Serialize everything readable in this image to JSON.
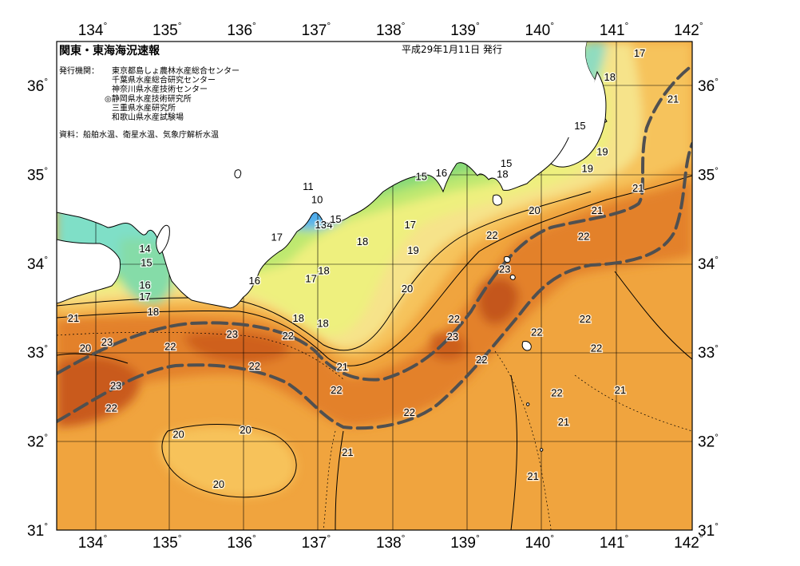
{
  "header": {
    "title": "関東・東海海況速報",
    "date": "平成29年1月11日 発行",
    "issuer_label": "発行機関：",
    "issuers": [
      "東京都島しょ農林水産総合センター",
      "千葉県水産総合研究センター",
      "神奈川県水産技術センター",
      "◎静岡県水産技術研究所",
      "三重県水産研究所",
      "和歌山県水産試験場"
    ],
    "source": "資料：船舶水温、衛星水温、気象庁解析水温"
  },
  "axes": {
    "lon_labels": [
      "134",
      "135",
      "136",
      "137",
      "138",
      "139",
      "140",
      "141",
      "142"
    ],
    "lat_labels": [
      "36",
      "35",
      "34",
      "33",
      "32",
      "31"
    ],
    "degree_symbol": "°"
  },
  "colors": {
    "land": "#ffffff",
    "coast": "#000000",
    "kuroshio_line": "#505050",
    "temp_11": "#2f7de0",
    "temp_13": "#4fb0ee",
    "temp_15": "#7ee0c8",
    "temp_16": "#7ad67a",
    "temp_17": "#b6e66e",
    "temp_18": "#e8f080",
    "temp_19": "#f6e78a",
    "temp_20": "#f7c35a",
    "temp_21": "#f1a53e",
    "temp_22": "#e4822a",
    "temp_23": "#cd5e1c"
  },
  "isotherm_labels": [
    {
      "text": "17",
      "lon": 141.3,
      "lat": 36.37
    },
    {
      "text": "18",
      "lon": 140.9,
      "lat": 36.1
    },
    {
      "text": "21",
      "lon": 141.75,
      "lat": 35.85
    },
    {
      "text": "15",
      "lon": 140.5,
      "lat": 35.55
    },
    {
      "text": "19",
      "lon": 140.8,
      "lat": 35.26
    },
    {
      "text": "19",
      "lon": 140.6,
      "lat": 35.07
    },
    {
      "text": "15",
      "lon": 139.51,
      "lat": 35.13
    },
    {
      "text": "18",
      "lon": 139.46,
      "lat": 35.01
    },
    {
      "text": "15",
      "lon": 138.37,
      "lat": 34.98
    },
    {
      "text": "16",
      "lon": 138.64,
      "lat": 35.02
    },
    {
      "text": "11",
      "lon": 136.85,
      "lat": 34.87
    },
    {
      "text": "10",
      "lon": 136.97,
      "lat": 34.72
    },
    {
      "text": "20",
      "lon": 139.89,
      "lat": 34.6
    },
    {
      "text": "21",
      "lon": 140.73,
      "lat": 34.6
    },
    {
      "text": "21",
      "lon": 141.28,
      "lat": 34.85
    },
    {
      "text": "13",
      "lon": 137.02,
      "lat": 34.44
    },
    {
      "text": "4",
      "lon": 137.14,
      "lat": 34.44
    },
    {
      "text": "15",
      "lon": 137.22,
      "lat": 34.5
    },
    {
      "text": "17",
      "lon": 138.22,
      "lat": 34.44
    },
    {
      "text": "22",
      "lon": 139.32,
      "lat": 34.32
    },
    {
      "text": "22",
      "lon": 140.55,
      "lat": 34.31
    },
    {
      "text": "17",
      "lon": 136.43,
      "lat": 34.3
    },
    {
      "text": "18",
      "lon": 137.58,
      "lat": 34.25
    },
    {
      "text": "19",
      "lon": 138.26,
      "lat": 34.15
    },
    {
      "text": "14",
      "lon": 134.66,
      "lat": 34.17
    },
    {
      "text": "15",
      "lon": 134.68,
      "lat": 34.01
    },
    {
      "text": "23",
      "lon": 139.49,
      "lat": 33.94
    },
    {
      "text": "18",
      "lon": 137.06,
      "lat": 33.92
    },
    {
      "text": "17",
      "lon": 136.89,
      "lat": 33.83
    },
    {
      "text": "16",
      "lon": 136.13,
      "lat": 33.81
    },
    {
      "text": "16",
      "lon": 134.66,
      "lat": 33.76
    },
    {
      "text": "20",
      "lon": 138.18,
      "lat": 33.72
    },
    {
      "text": "17",
      "lon": 134.66,
      "lat": 33.63
    },
    {
      "text": "18",
      "lon": 134.77,
      "lat": 33.46
    },
    {
      "text": "21",
      "lon": 133.7,
      "lat": 33.39
    },
    {
      "text": "18",
      "lon": 136.72,
      "lat": 33.39
    },
    {
      "text": "18",
      "lon": 137.05,
      "lat": 33.33
    },
    {
      "text": "22",
      "lon": 138.81,
      "lat": 33.38
    },
    {
      "text": "22",
      "lon": 140.57,
      "lat": 33.38
    },
    {
      "text": "23",
      "lon": 135.83,
      "lat": 33.21
    },
    {
      "text": "22",
      "lon": 136.58,
      "lat": 33.19
    },
    {
      "text": "23",
      "lon": 138.79,
      "lat": 33.18
    },
    {
      "text": "22",
      "lon": 139.92,
      "lat": 33.23
    },
    {
      "text": "23",
      "lon": 134.15,
      "lat": 33.12
    },
    {
      "text": "22",
      "lon": 135.0,
      "lat": 33.07
    },
    {
      "text": "20",
      "lon": 133.86,
      "lat": 33.05
    },
    {
      "text": "22",
      "lon": 140.72,
      "lat": 33.05
    },
    {
      "text": "22",
      "lon": 139.18,
      "lat": 32.92
    },
    {
      "text": "22",
      "lon": 136.13,
      "lat": 32.85
    },
    {
      "text": "21",
      "lon": 137.31,
      "lat": 32.84
    },
    {
      "text": "23",
      "lon": 134.27,
      "lat": 32.63
    },
    {
      "text": "22",
      "lon": 137.23,
      "lat": 32.58
    },
    {
      "text": "21",
      "lon": 141.04,
      "lat": 32.58
    },
    {
      "text": "22",
      "lon": 140.19,
      "lat": 32.55
    },
    {
      "text": "22",
      "lon": 134.21,
      "lat": 32.38
    },
    {
      "text": "22",
      "lon": 138.21,
      "lat": 32.33
    },
    {
      "text": "21",
      "lon": 140.28,
      "lat": 32.22
    },
    {
      "text": "20",
      "lon": 136.01,
      "lat": 32.13
    },
    {
      "text": "20",
      "lon": 135.11,
      "lat": 32.08
    },
    {
      "text": "21",
      "lon": 137.38,
      "lat": 31.88
    },
    {
      "text": "21",
      "lon": 139.87,
      "lat": 31.61
    },
    {
      "text": "20",
      "lon": 135.65,
      "lat": 31.52
    }
  ]
}
